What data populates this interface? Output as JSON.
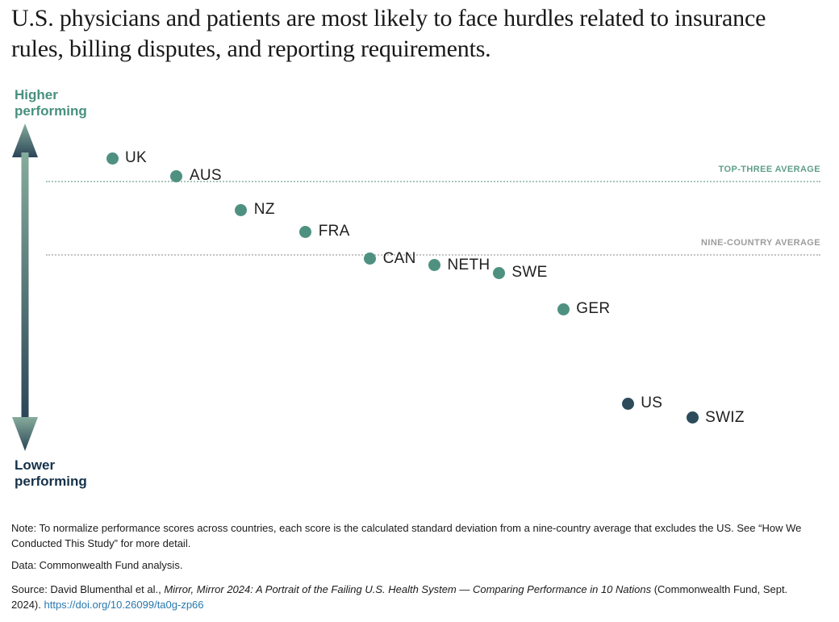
{
  "title": {
    "line1": "U.S. physicians and patients are most likely to face hurdles related to insurance",
    "line2": "rules, billing disputes, and reporting requirements."
  },
  "axis": {
    "higher_label": "Higher performing",
    "lower_label": "Lower performing"
  },
  "colors": {
    "dot_default": "#4f9181",
    "dot_highlight": "#2d4c5b",
    "higher_label_color": "#47907e",
    "lower_label_color": "#16324a",
    "arrow_top_color": "#86ac9c",
    "arrow_bottom_color": "#2b4557",
    "link_color": "#2878ae"
  },
  "chart_data": {
    "type": "scatter",
    "title": "U.S. physicians and patients are most likely to face hurdles related to insurance rules, billing disputes, and reporting requirements.",
    "categories": [
      "UK",
      "AUS",
      "NZ",
      "FRA",
      "CAN",
      "NETH",
      "SWE",
      "GER",
      "US",
      "SWIZ"
    ],
    "values": [
      0.75,
      0.61,
      0.35,
      0.18,
      -0.03,
      -0.08,
      -0.14,
      -0.42,
      -1.15,
      -1.26
    ],
    "units": "standard deviations from nine-country average (estimated from chart)",
    "ylabel_top": "Higher performing",
    "ylabel_bottom": "Lower performing",
    "ylim": [
      -1.6,
      1.0
    ],
    "grid": false,
    "highlight": [
      "US",
      "SWIZ"
    ],
    "reference_lines": [
      {
        "key": "top_three",
        "label": "TOP-THREE AVERAGE",
        "value": 0.57,
        "label_color": "#5f9e8b",
        "line_color": "#a7c6ba"
      },
      {
        "key": "nine_country",
        "label": "NINE-COUNTRY AVERAGE",
        "value": 0,
        "label_color": "#9c9c9c",
        "line_color": "#c3c3c3"
      }
    ]
  },
  "footnotes": {
    "note": "Note: To normalize performance scores across countries, each score is the calculated standard deviation from a nine-country average that excludes the US. See “How We Conducted This Study” for more detail.",
    "data_line": "Data: Commonwealth Fund analysis.",
    "source_prefix": "Source: David Blumenthal et al., ",
    "source_title": "Mirror, Mirror 2024: A Portrait of the Failing U.S. Health System — Comparing Performance in 10 Nations",
    "source_suffix": " (Commonwealth Fund, Sept. 2024). ",
    "source_link": "https://doi.org/10.26099/ta0g-zp66"
  }
}
